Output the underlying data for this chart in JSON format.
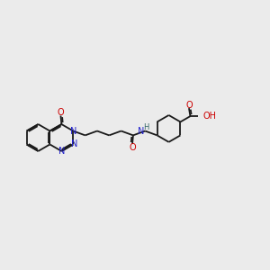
{
  "bg_color": "#ebebeb",
  "bond_color": "#1a1a1a",
  "n_color": "#2222cc",
  "o_color": "#cc0000",
  "h_color": "#336666",
  "lw": 1.3,
  "lw_thick": 1.3,
  "fig_w": 3.0,
  "fig_h": 3.0,
  "dpi": 100,
  "xlim": [
    0,
    10
  ],
  "ylim": [
    2.5,
    7.5
  ]
}
